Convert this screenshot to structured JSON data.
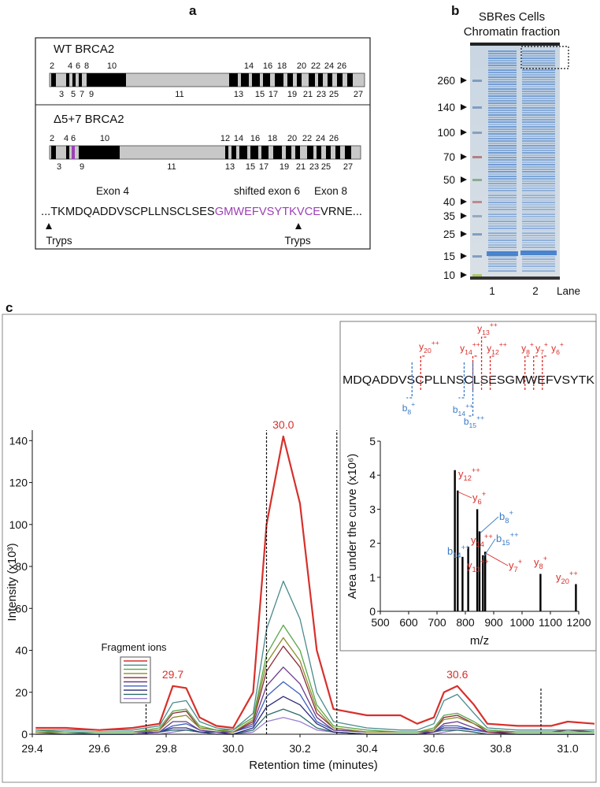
{
  "panel_labels": [
    "a",
    "b",
    "c"
  ],
  "panel_a": {
    "wt": {
      "title": "WT BRCA2",
      "exons_top": [
        2,
        4,
        6,
        8,
        10,
        14,
        16,
        18,
        20,
        22,
        24,
        26
      ],
      "exons_bottom": [
        3,
        5,
        7,
        9,
        11,
        13,
        15,
        17,
        19,
        21,
        23,
        25,
        27
      ]
    },
    "mutant": {
      "title": "Δ5+7 BRCA2",
      "exons_top": [
        2,
        4,
        6,
        10,
        12,
        14,
        16,
        18,
        20,
        22,
        24,
        26
      ],
      "exons_bottom": [
        3,
        9,
        11,
        13,
        15,
        17,
        19,
        21,
        23,
        25,
        27
      ],
      "highlight": 6
    },
    "highlight_color": "#9b40b5",
    "sequence": {
      "exon_labels": [
        "Exon 4",
        "shifted exon 6",
        "Exon 8"
      ],
      "parts": [
        "...TKMDQADDVSCPLLNSCLSES",
        "GMWEFVSYTKVCE",
        "VRNE..."
      ],
      "cleavage": [
        "Tryps",
        "Tryps"
      ]
    }
  },
  "panel_b": {
    "title": [
      "SBRes Cells",
      "Chromatin fraction"
    ],
    "markers": [
      260,
      140,
      100,
      70,
      50,
      40,
      35,
      25,
      15,
      10
    ],
    "lanes": [
      "1",
      "2"
    ],
    "lane_label": "Lane"
  },
  "chart_data": [
    {
      "type": "line",
      "ylabel": "Intensity (x10³)",
      "xlabel": "Retention time (minutes)",
      "x": [
        29.41,
        29.5,
        29.6,
        29.7,
        29.78,
        29.82,
        29.86,
        29.9,
        29.95,
        30.0,
        30.06,
        30.1,
        30.15,
        30.2,
        30.25,
        30.3,
        30.4,
        30.5,
        30.55,
        30.6,
        30.63,
        30.67,
        30.72,
        30.76,
        30.85,
        30.95,
        31.0,
        31.08
      ],
      "xlim": [
        29.4,
        31.08
      ],
      "xticks": [
        29.4,
        29.6,
        29.8,
        {
          "value": 30,
          "label": "30.0"
        },
        30.2,
        30.4,
        30.6,
        30.8,
        {
          "value": 31,
          "label": "31.0"
        }
      ],
      "ylim": [
        0,
        145
      ],
      "yticks": [
        0,
        20,
        40,
        60,
        80,
        100,
        120,
        140
      ],
      "legend_title": "Fragment ions",
      "series": [
        {
          "color": "#d7302b",
          "values": [
            3,
            3,
            2,
            3,
            5,
            23,
            22,
            8,
            4,
            3,
            20,
            100,
            142,
            110,
            40,
            12,
            9,
            9,
            5,
            8,
            20,
            23,
            14,
            5,
            4,
            4,
            6,
            5
          ]
        },
        {
          "color": "#4a8a8c",
          "values": [
            2,
            2,
            2,
            2,
            4,
            15,
            16,
            6,
            3,
            2,
            10,
            50,
            73,
            55,
            20,
            6,
            3,
            2,
            2,
            5,
            16,
            19,
            10,
            3,
            2,
            2,
            2,
            2
          ]
        },
        {
          "color": "#5aa64a",
          "values": [
            2,
            1,
            1,
            1,
            3,
            11,
            12,
            4,
            2,
            2,
            8,
            38,
            52,
            40,
            14,
            4,
            2,
            1,
            1,
            3,
            9,
            10,
            6,
            2,
            1,
            1,
            1,
            1
          ]
        },
        {
          "color": "#8c8c2a",
          "values": [
            1,
            1,
            1,
            1,
            2,
            8,
            9,
            3,
            2,
            1,
            7,
            34,
            46,
            35,
            12,
            3,
            1,
            1,
            1,
            2,
            7,
            8,
            5,
            2,
            1,
            1,
            1,
            1
          ]
        },
        {
          "color": "#8b2a3a",
          "values": [
            1,
            1,
            1,
            1,
            2,
            10,
            11,
            3,
            2,
            1,
            6,
            30,
            42,
            32,
            10,
            3,
            1,
            1,
            1,
            2,
            8,
            9,
            5,
            1,
            1,
            1,
            2,
            1
          ]
        },
        {
          "color": "#6a3a8c",
          "values": [
            1,
            1,
            1,
            1,
            1,
            6,
            6,
            2,
            1,
            1,
            5,
            23,
            32,
            24,
            8,
            2,
            1,
            1,
            1,
            1,
            5,
            6,
            3,
            1,
            1,
            1,
            1,
            1
          ]
        },
        {
          "color": "#3c5fbf",
          "values": [
            1,
            1,
            0,
            0,
            1,
            4,
            5,
            2,
            1,
            1,
            4,
            18,
            25,
            19,
            6,
            2,
            1,
            1,
            1,
            1,
            4,
            4,
            2,
            1,
            1,
            1,
            1,
            1
          ]
        },
        {
          "color": "#2a2a7a",
          "values": [
            0,
            0,
            0,
            0,
            1,
            3,
            3,
            1,
            1,
            0,
            3,
            13,
            18,
            14,
            5,
            1,
            0,
            0,
            0,
            1,
            3,
            3,
            2,
            1,
            0,
            0,
            0,
            0
          ]
        },
        {
          "color": "#2d6b6b",
          "values": [
            1,
            0,
            0,
            0,
            1,
            2,
            2,
            1,
            0,
            0,
            2,
            9,
            12,
            9,
            3,
            1,
            0,
            0,
            0,
            1,
            2,
            2,
            1,
            0,
            0,
            0,
            0,
            0
          ]
        },
        {
          "color": "#9a7fd0",
          "values": [
            0,
            0,
            0,
            0,
            0,
            1,
            2,
            1,
            0,
            0,
            1,
            6,
            8,
            6,
            2,
            1,
            0,
            0,
            0,
            0,
            1,
            2,
            1,
            0,
            0,
            0,
            0,
            0
          ]
        }
      ],
      "peak_labels": [
        {
          "value": 29.7,
          "label": "29.7"
        },
        {
          "value": 30,
          "label": "30.0"
        },
        {
          "value": 30.6,
          "label": "30.6"
        }
      ],
      "peak_label_color": "#d7302b",
      "window_lines": [
        {
          "x": 29.74,
          "y": 25
        },
        {
          "x": 30.1,
          "y": 145
        },
        {
          "x": 30.31,
          "y": 145
        },
        {
          "x": 30.92,
          "y": 22
        }
      ]
    },
    {
      "type": "bar",
      "ylabel": "Area under the curve (x10⁶)",
      "xlabel": "m/z",
      "x": [
        763,
        773,
        790,
        810,
        842,
        850,
        862,
        870,
        1065,
        1190
      ],
      "values": [
        4.15,
        3.55,
        1.6,
        1.9,
        3.0,
        2.35,
        1.65,
        1.75,
        1.1,
        0.8
      ],
      "color": "#000000",
      "xlim": [
        500,
        1200
      ],
      "xticks": [
        500,
        600,
        700,
        800,
        900,
        1000,
        1100,
        1200
      ],
      "ylim": [
        0,
        5
      ],
      "yticks": [
        0,
        1,
        2,
        3,
        4,
        5
      ],
      "ion_colors": {
        "y": "#d9302c",
        "b": "#3d7cc4"
      },
      "peak_labels": [
        {
          "ion": "y",
          "n": 12,
          "z": "++"
        },
        {
          "ion": "y",
          "n": 6,
          "z": "+"
        },
        {
          "ion": "b",
          "n": 14,
          "z": "++"
        },
        {
          "ion": "y",
          "n": 13,
          "z": "++"
        },
        {
          "ion": "y",
          "n": 14,
          "z": "++"
        },
        {
          "ion": "b",
          "n": 8,
          "z": "+"
        },
        {
          "ion": "b",
          "n": 15,
          "z": "++"
        },
        {
          "ion": "y",
          "n": 7,
          "z": "+"
        },
        {
          "ion": "y",
          "n": 8,
          "z": "+"
        },
        {
          "ion": "y",
          "n": 20,
          "z": "++"
        }
      ],
      "sequence": "MDQADDVSCPLLNSCLSESGMWEFVSYTK",
      "fragments": [
        {
          "ion": "y",
          "n": 20,
          "z": "++"
        },
        {
          "ion": "y",
          "n": 14,
          "z": "++"
        },
        {
          "ion": "y",
          "n": 13,
          "z": "++"
        },
        {
          "ion": "y",
          "n": 12,
          "z": "++"
        },
        {
          "ion": "y",
          "n": 8,
          "z": "+"
        },
        {
          "ion": "y",
          "n": 7,
          "z": "+"
        },
        {
          "ion": "y",
          "n": 6,
          "z": "+"
        },
        {
          "ion": "b",
          "n": 8,
          "z": "+"
        },
        {
          "ion": "b",
          "n": 14,
          "z": "++"
        },
        {
          "ion": "b",
          "n": 15,
          "z": "++"
        }
      ]
    }
  ]
}
